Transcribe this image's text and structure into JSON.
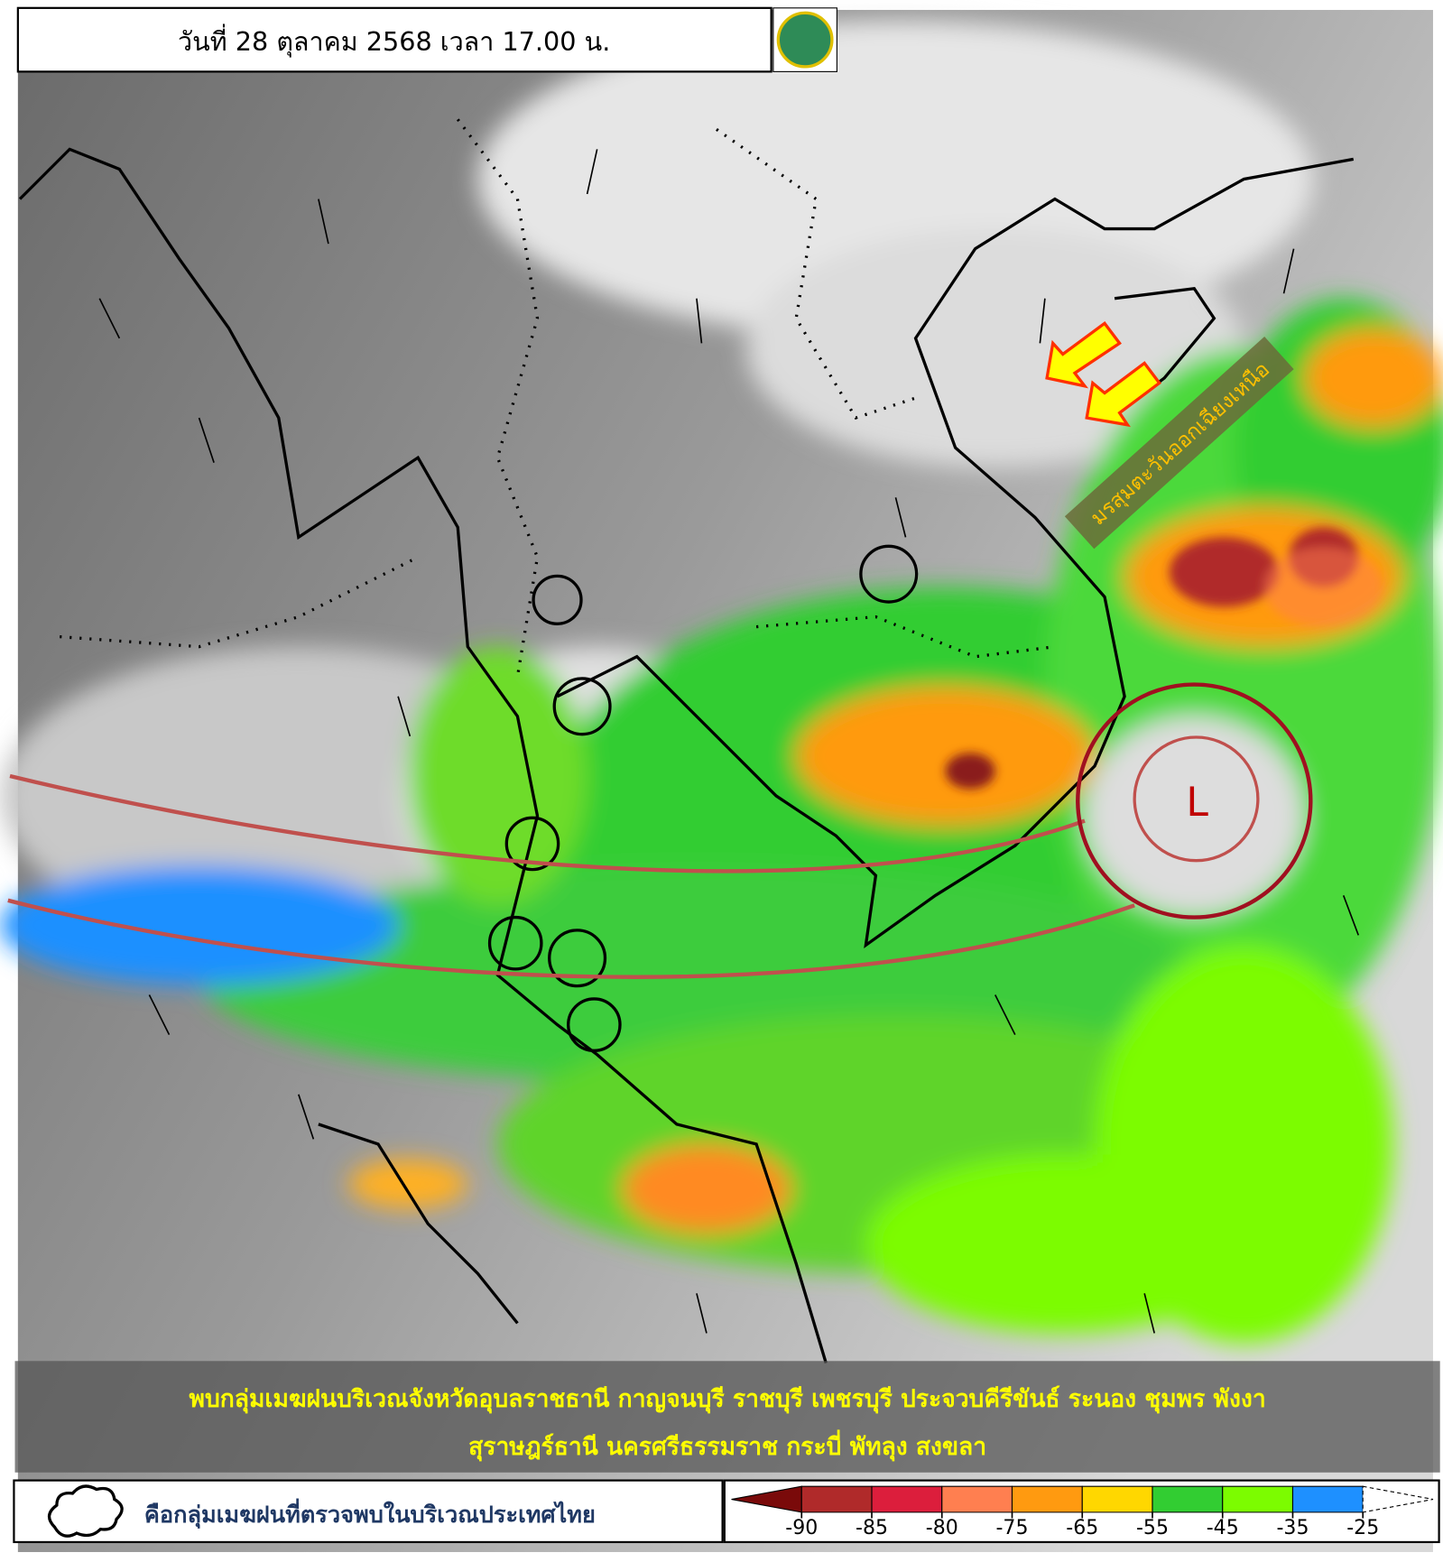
{
  "header": {
    "title": "วันที่ 28 ตุลาคม 2568 เวลา 17.00 น."
  },
  "map": {
    "low_label": "L",
    "monsoon_label": "มรสุมตะวันออกเฉียงเหนือ"
  },
  "caption": {
    "lines": [
      "พบกลุ่มเมฆฝนบริเวณจังหวัดอุบลราชธานี กาญจนบุรี ราชบุรี เพชรบุรี ประจวบคีรีขันธ์ ระนอง ชุมพร พังงา",
      "สุราษฎร์ธานี นครศรีธรรมราช กระบี่ พัทลุง สงขลา"
    ]
  },
  "legend": {
    "cloud_text": "คือกลุ่มเมฆฝนที่ตรวจพบในบริเวณประเทศไทย"
  },
  "colorbar": {
    "colors": [
      "#7a0a0a",
      "#b02a2a",
      "#dc1e3c",
      "#ff7f50",
      "#ff9a10",
      "#ffd700",
      "#32cd32",
      "#7cfc00",
      "#1e90ff",
      "#ffffff"
    ],
    "ticks": [
      -90,
      -85,
      -80,
      -75,
      -65,
      -55,
      -45,
      -35,
      -25
    ]
  }
}
